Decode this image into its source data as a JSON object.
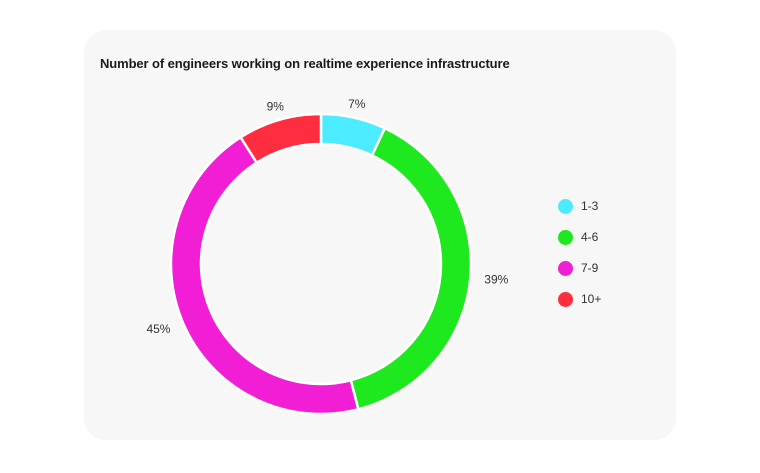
{
  "chart_data": {
    "type": "pie",
    "title": "Number of engineers working on realtime experience infrastructure",
    "donut": true,
    "categories": [
      "1-3",
      "4-6",
      "7-9",
      "10+"
    ],
    "values": [
      7,
      39,
      45,
      9
    ],
    "value_labels": [
      "7%",
      "39%",
      "45%",
      "9%"
    ],
    "unit": "%",
    "colors": [
      "#4cebff",
      "#1ee81e",
      "#f21ed6",
      "#ff2d3f"
    ],
    "legend_position": "right"
  }
}
